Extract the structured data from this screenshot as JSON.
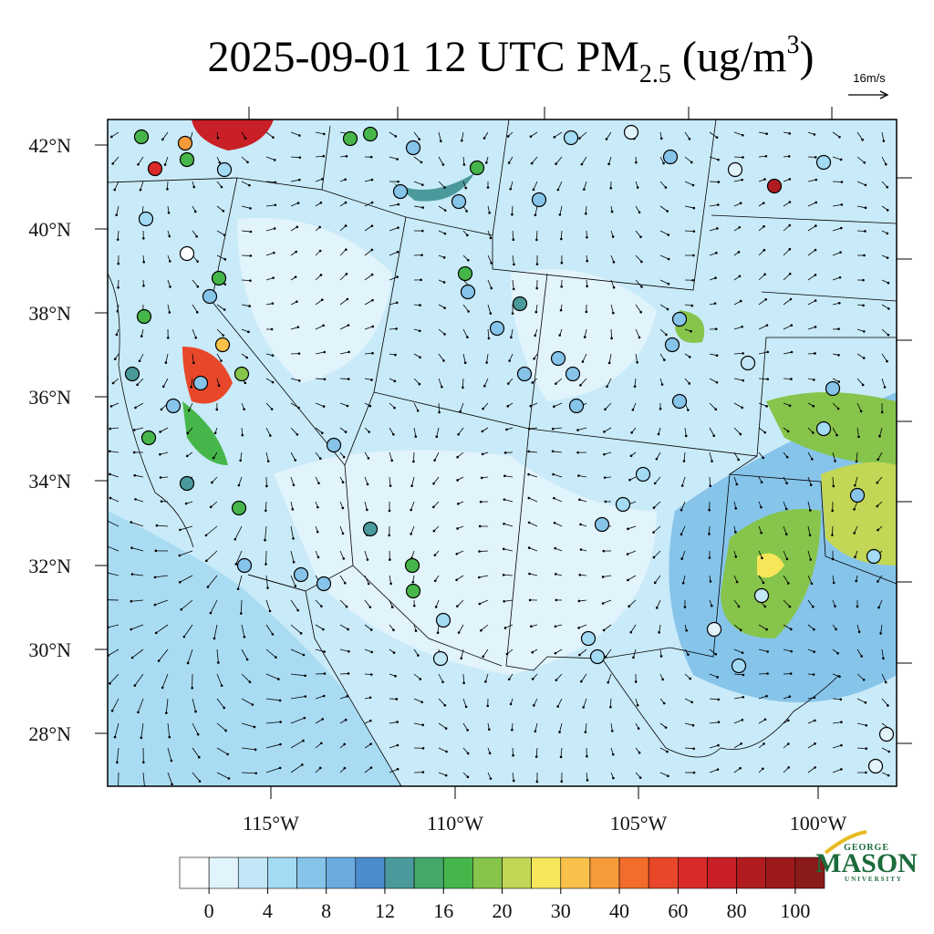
{
  "title": {
    "main": "2025-09-01 12 UTC PM",
    "subscript": "2.5",
    "units": " (ug/m",
    "superscript": "3",
    "close": ")"
  },
  "wind_reference": "16m/s",
  "latitude_labels": [
    "42°N",
    "40°N",
    "38°N",
    "36°N",
    "34°N",
    "32°N",
    "30°N",
    "28°N"
  ],
  "longitude_labels": [
    "115°W",
    "110°W",
    "105°W",
    "100°W"
  ],
  "colorbar": {
    "colors": [
      "#ffffff",
      "#e1f3fb",
      "#c2e7f7",
      "#a3daf4",
      "#86c4ea",
      "#6aabe0",
      "#4a8ccc",
      "#4a9a9b",
      "#45a86a",
      "#46b64a",
      "#86c44b",
      "#c3d655",
      "#f7e65a",
      "#f9c04a",
      "#f69a3a",
      "#f36c2a",
      "#e8472a",
      "#d92a2a",
      "#c91f26",
      "#b01c20",
      "#9c1a1c",
      "#8b1a1a"
    ],
    "ticks": [
      0,
      4,
      8,
      12,
      16,
      20,
      30,
      40,
      60,
      80,
      100
    ]
  },
  "logo": {
    "top": "GEORGE",
    "middle": "MASON",
    "bottom": "UNIVERSITY"
  }
}
